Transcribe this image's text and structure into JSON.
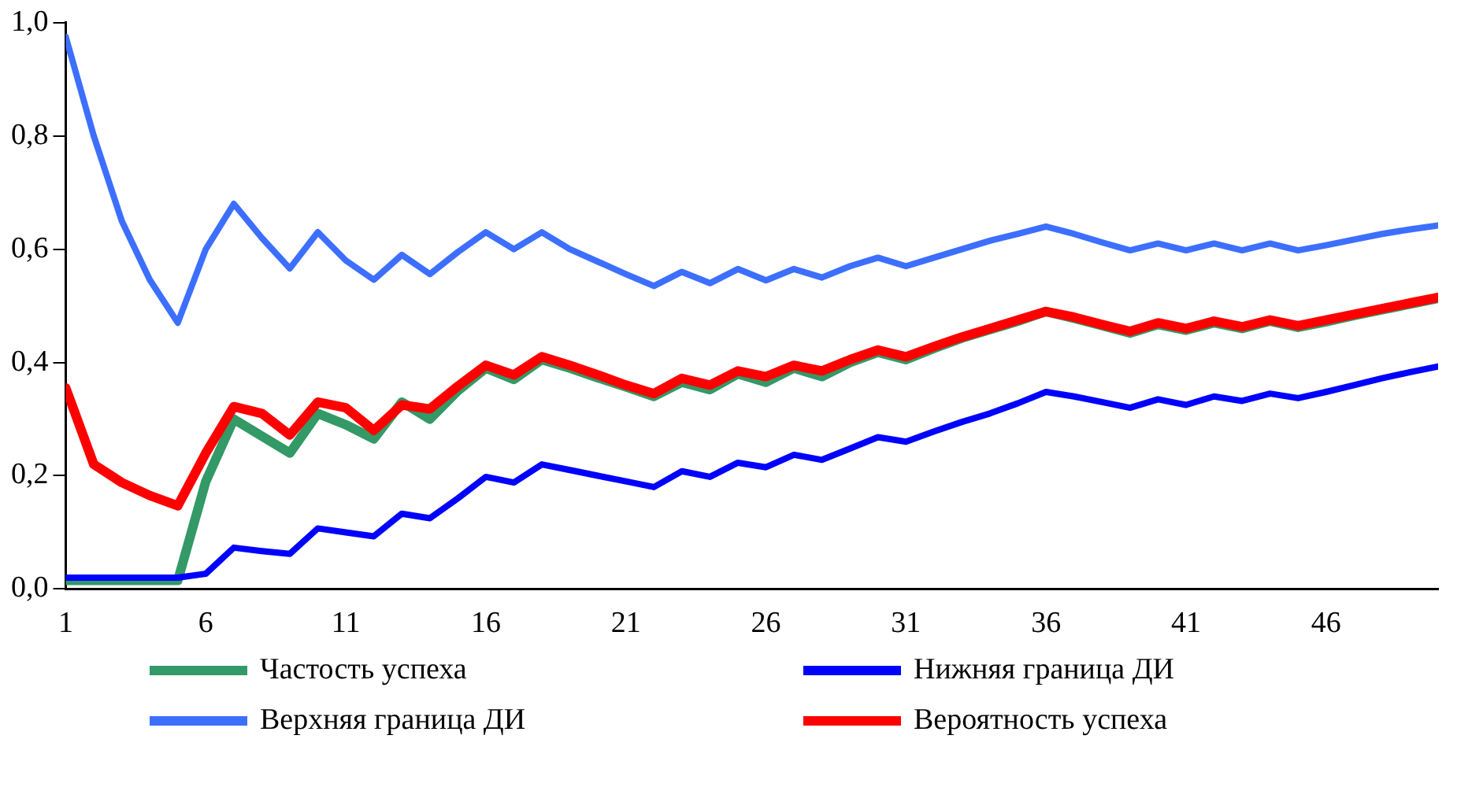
{
  "chart_data": {
    "type": "line",
    "x": [
      1,
      2,
      3,
      4,
      5,
      6,
      7,
      8,
      9,
      10,
      11,
      12,
      13,
      14,
      15,
      16,
      17,
      18,
      19,
      20,
      21,
      22,
      23,
      24,
      25,
      26,
      27,
      28,
      29,
      30,
      31,
      32,
      33,
      34,
      35,
      36,
      37,
      38,
      39,
      40,
      41,
      42,
      43,
      44,
      45,
      46,
      47,
      48,
      49,
      50
    ],
    "xlim": [
      1,
      50
    ],
    "xticks": [
      1,
      6,
      11,
      16,
      21,
      26,
      31,
      36,
      41,
      46
    ],
    "ylim": [
      0,
      1
    ],
    "yticks": [
      {
        "value": 0,
        "label": "0,0"
      },
      {
        "value": 0.2,
        "label": "0,2"
      },
      {
        "value": 0.4,
        "label": "0,4"
      },
      {
        "value": 0.6,
        "label": "0,6"
      },
      {
        "value": 0.8,
        "label": "0,8"
      },
      {
        "value": 1,
        "label": "1,0"
      }
    ],
    "grid": false,
    "legend": "bottom",
    "marker": "none",
    "line_style": "solid",
    "series": [
      {
        "name": "Частость успеха",
        "color": "#339966",
        "values": [
          0.015,
          0.015,
          0.015,
          0.015,
          0.015,
          0.19,
          0.3,
          0.27,
          0.24,
          0.31,
          0.29,
          0.265,
          0.33,
          0.3,
          0.35,
          0.39,
          0.37,
          0.405,
          0.39,
          0.373,
          0.357,
          0.34,
          0.365,
          0.352,
          0.38,
          0.365,
          0.39,
          0.375,
          0.4,
          0.418,
          0.405,
          0.425,
          0.443,
          0.458,
          0.473,
          0.49,
          0.478,
          0.465,
          0.452,
          0.467,
          0.457,
          0.47,
          0.46,
          0.473,
          0.462,
          0.472,
          0.483,
          0.493,
          0.503,
          0.513
        ]
      },
      {
        "name": "Нижняя граница ДИ",
        "color": "#0000ff",
        "values": [
          0.02,
          0.02,
          0.02,
          0.02,
          0.02,
          0.027,
          0.073,
          0.067,
          0.062,
          0.107,
          0.1,
          0.093,
          0.133,
          0.125,
          0.16,
          0.198,
          0.188,
          0.22,
          0.21,
          0.2,
          0.19,
          0.18,
          0.208,
          0.198,
          0.223,
          0.215,
          0.237,
          0.228,
          0.248,
          0.268,
          0.26,
          0.278,
          0.295,
          0.31,
          0.328,
          0.348,
          0.34,
          0.33,
          0.32,
          0.335,
          0.325,
          0.34,
          0.332,
          0.345,
          0.337,
          0.348,
          0.36,
          0.372,
          0.383,
          0.393
        ]
      },
      {
        "name": "Верхняя граница ДИ",
        "color": "#3d6fff",
        "values": [
          0.975,
          0.8,
          0.65,
          0.546,
          0.47,
          0.6,
          0.68,
          0.62,
          0.566,
          0.63,
          0.58,
          0.546,
          0.59,
          0.556,
          0.595,
          0.63,
          0.6,
          0.63,
          0.6,
          0.578,
          0.556,
          0.535,
          0.56,
          0.54,
          0.565,
          0.545,
          0.565,
          0.55,
          0.57,
          0.585,
          0.57,
          0.585,
          0.6,
          0.615,
          0.627,
          0.64,
          0.627,
          0.612,
          0.598,
          0.61,
          0.598,
          0.61,
          0.598,
          0.61,
          0.598,
          0.607,
          0.617,
          0.627,
          0.635,
          0.642
        ]
      },
      {
        "name": "Вероятность успеха",
        "color": "#ff0000",
        "values": [
          0.355,
          0.22,
          0.188,
          0.165,
          0.147,
          0.24,
          0.322,
          0.31,
          0.272,
          0.33,
          0.32,
          0.28,
          0.325,
          0.318,
          0.358,
          0.395,
          0.378,
          0.41,
          0.395,
          0.378,
          0.36,
          0.345,
          0.372,
          0.36,
          0.385,
          0.375,
          0.395,
          0.385,
          0.405,
          0.422,
          0.41,
          0.428,
          0.445,
          0.46,
          0.475,
          0.49,
          0.48,
          0.467,
          0.455,
          0.47,
          0.46,
          0.473,
          0.463,
          0.475,
          0.465,
          0.475,
          0.485,
          0.495,
          0.505,
          0.515
        ]
      }
    ]
  }
}
